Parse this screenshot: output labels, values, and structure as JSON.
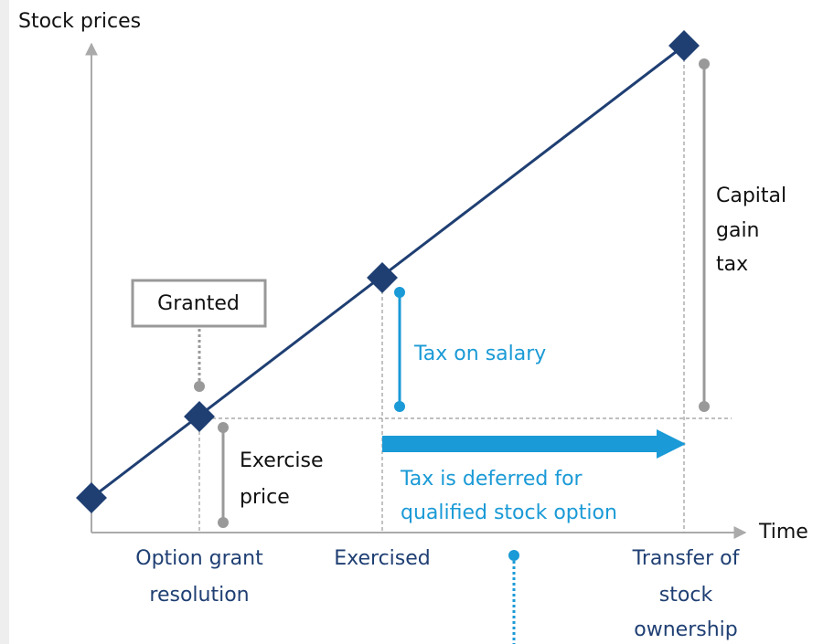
{
  "axes": {
    "y_label": "Stock prices",
    "x_label": "Time"
  },
  "callouts": {
    "granted": "Granted",
    "exercise_price": [
      "Exercise",
      "price"
    ],
    "tax_on_salary": "Tax on salary",
    "capital_gain_tax": [
      "Capital",
      "gain",
      "tax"
    ],
    "deferred": [
      "Tax is deferred for",
      "qualified stock option"
    ]
  },
  "milestones": [
    {
      "lines": [
        "Option grant",
        "resolution"
      ]
    },
    {
      "lines": [
        "Exercised"
      ]
    },
    {
      "lines": [
        "Transfer of",
        "stock",
        "ownership"
      ]
    }
  ]
}
